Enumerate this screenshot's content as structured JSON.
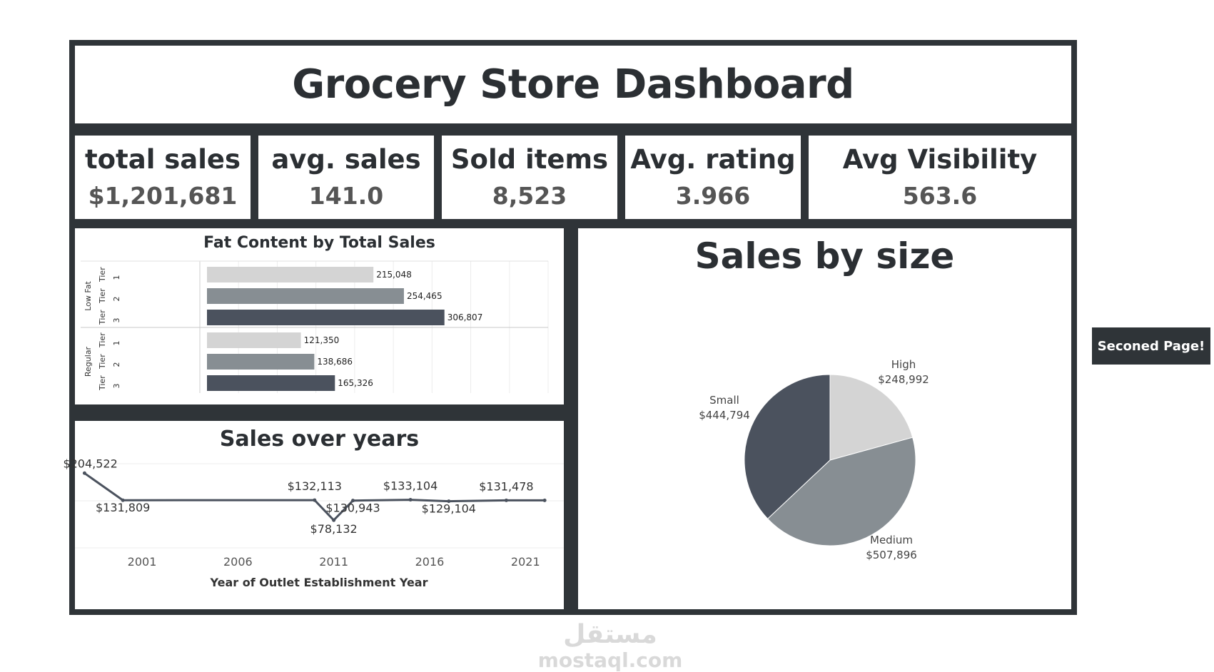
{
  "header": {
    "title": "Grocery Store Dashboard"
  },
  "kpis": [
    {
      "label": "total sales",
      "value": "$1,201,681"
    },
    {
      "label": "avg. sales",
      "value": "141.0"
    },
    {
      "label": "Sold items",
      "value": "8,523"
    },
    {
      "label": "Avg. rating",
      "value": "3.966"
    },
    {
      "label": "Avg Visibility",
      "value": "563.6"
    }
  ],
  "nav": {
    "second_page_label": "Seconed Page!"
  },
  "watermark": {
    "brand": "مستقل",
    "domain": "mostaql.com"
  },
  "colors": {
    "frame": "#2f3438",
    "light": "#d4d4d4",
    "mid": "#878e93",
    "dark": "#4b525e"
  },
  "chart_data": [
    {
      "type": "bar",
      "title": "Fat Content by Total Sales",
      "orientation": "horizontal",
      "groups": [
        {
          "name": "Low Fat",
          "categories": [
            "Tier 1",
            "Tier 2",
            "Tier 3"
          ],
          "values": [
            215048,
            254465,
            306807
          ],
          "labels": [
            "215,048",
            "254,465",
            "306,807"
          ]
        },
        {
          "name": "Regular",
          "categories": [
            "Tier 1",
            "Tier 2",
            "Tier 3"
          ],
          "values": [
            121350,
            138686,
            165326
          ],
          "labels": [
            "121,350",
            "138,686",
            "165,326"
          ]
        }
      ],
      "xlim": [
        0,
        450000
      ],
      "grid": true
    },
    {
      "type": "line",
      "title": "Sales over years",
      "xlabel": "Year of Outlet Establishment Year",
      "x": [
        1998,
        2000,
        2010,
        2011,
        2012,
        2015,
        2017,
        2020,
        2022
      ],
      "values": [
        204522,
        131809,
        132113,
        78132,
        130943,
        133104,
        129104,
        131478,
        131478
      ],
      "labels": [
        "$204,522",
        "$131,809",
        "$132,113",
        "$78,132",
        "$130,943",
        "$133,104",
        "$129,104",
        "$131,478",
        ""
      ],
      "xticks": [
        2001,
        2006,
        2011,
        2016,
        2021
      ],
      "xlim": [
        1997.5,
        2023
      ],
      "ylim": [
        0,
        230000
      ]
    },
    {
      "type": "pie",
      "title": "Sales by size",
      "slices": [
        {
          "name": "High",
          "value": 248992,
          "label": "$248,992",
          "color": "#d4d4d4"
        },
        {
          "name": "Medium",
          "value": 507896,
          "label": "$507,896",
          "color": "#878e93"
        },
        {
          "name": "Small",
          "value": 444794,
          "label": "$444,794",
          "color": "#4b525e"
        }
      ]
    }
  ]
}
